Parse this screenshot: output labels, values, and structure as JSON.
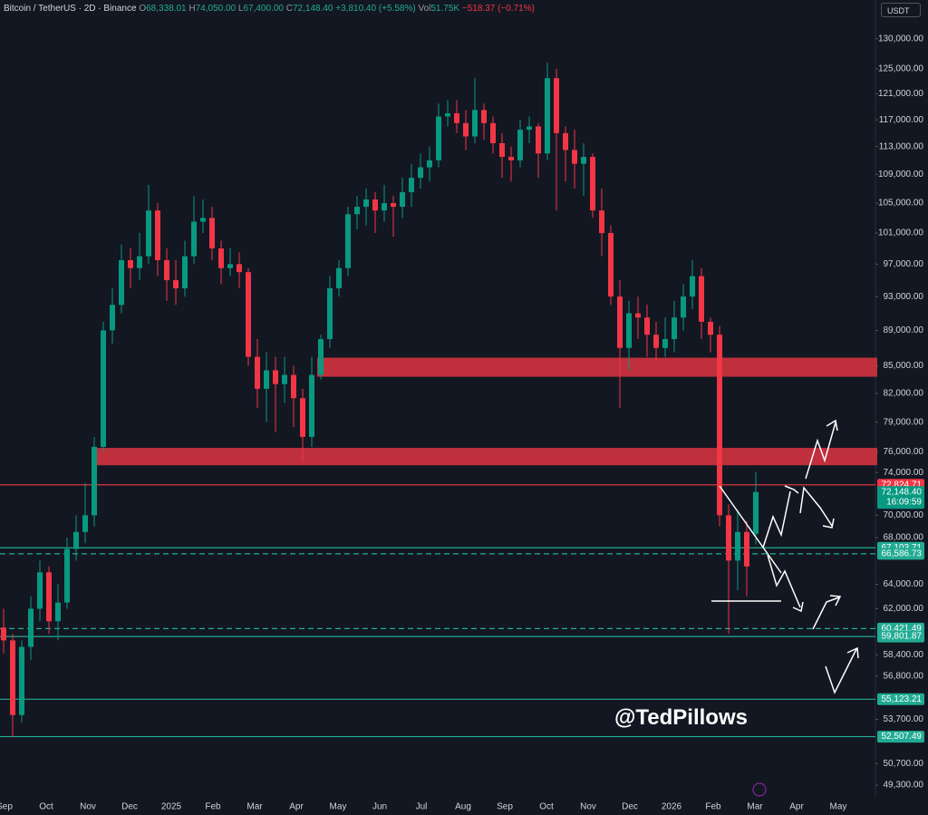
{
  "header": {
    "symbol": "Bitcoin / TetherUS · 2D · Binance",
    "fields": [
      {
        "key": "O",
        "value": "68,338.01"
      },
      {
        "key": "H",
        "value": "74,050.00"
      },
      {
        "key": "L",
        "value": "67,400.00"
      },
      {
        "key": "C",
        "value": "72,148.40"
      }
    ],
    "change": "+3,810.40 (+5.58%)",
    "volume_key": "Vol",
    "volume": "51.75K",
    "volume_change": "−518.37 (−0.71%)"
  },
  "currency": "USDT",
  "watermark": "@TedPillows",
  "chart_data": {
    "type": "candlestick",
    "log_scale": true,
    "up_color": "#089981",
    "down_color": "#f23645",
    "zone_color": "#d3323f",
    "ylim": [
      48500,
      136700
    ],
    "yticks": [
      {
        "value": 130000,
        "label": "130,000.00"
      },
      {
        "value": 125000,
        "label": "125,000.00"
      },
      {
        "value": 121000,
        "label": "121,000.00"
      },
      {
        "value": 117000,
        "label": "117,000.00"
      },
      {
        "value": 113000,
        "label": "113,000.00"
      },
      {
        "value": 109000,
        "label": "109,000.00"
      },
      {
        "value": 105000,
        "label": "105,000.00"
      },
      {
        "value": 101000,
        "label": "101,000.00"
      },
      {
        "value": 97000,
        "label": "97,000.00"
      },
      {
        "value": 93000,
        "label": "93,000.00"
      },
      {
        "value": 89000,
        "label": "89,000.00"
      },
      {
        "value": 85000,
        "label": "85,000.00"
      },
      {
        "value": 82000,
        "label": "82,000.00"
      },
      {
        "value": 79000,
        "label": "79,000.00"
      },
      {
        "value": 76000,
        "label": "76,000.00"
      },
      {
        "value": 74000,
        "label": "74,000.00"
      },
      {
        "value": 70000,
        "label": "70,000.00"
      },
      {
        "value": 68000,
        "label": "68,000.00"
      },
      {
        "value": 64000,
        "label": "64,000.00"
      },
      {
        "value": 62000,
        "label": "62,000.00"
      },
      {
        "value": 58400,
        "label": "58,400.00"
      },
      {
        "value": 56800,
        "label": "56,800.00"
      },
      {
        "value": 53700,
        "label": "53,700.00"
      },
      {
        "value": 50700,
        "label": "50,700.00"
      },
      {
        "value": 49300,
        "label": "49,300.00"
      }
    ],
    "x_labels": [
      "Sep",
      "Oct",
      "Nov",
      "Dec",
      "2025",
      "Feb",
      "Mar",
      "Apr",
      "May",
      "Jun",
      "Jul",
      "Aug",
      "Sep",
      "Oct",
      "Nov",
      "Dec",
      "2026",
      "Feb",
      "Mar",
      "Apr",
      "May"
    ],
    "candles": [
      [
        60500,
        62000,
        58500,
        59500
      ],
      [
        59500,
        60000,
        52500,
        54000
      ],
      [
        54000,
        59500,
        53500,
        59000
      ],
      [
        59000,
        63000,
        58000,
        62000
      ],
      [
        62000,
        66000,
        61000,
        65000
      ],
      [
        65000,
        65500,
        60000,
        61000
      ],
      [
        61000,
        64000,
        59500,
        62500
      ],
      [
        62500,
        68000,
        62000,
        67000
      ],
      [
        67000,
        70000,
        66000,
        68500
      ],
      [
        68500,
        73000,
        67500,
        70000
      ],
      [
        70000,
        77500,
        69000,
        76500
      ],
      [
        76500,
        90000,
        76000,
        89000
      ],
      [
        89000,
        94000,
        87500,
        92000
      ],
      [
        92000,
        99500,
        91000,
        97500
      ],
      [
        97500,
        99000,
        94000,
        96500
      ],
      [
        96500,
        101000,
        95000,
        98000
      ],
      [
        98000,
        107500,
        97000,
        104000
      ],
      [
        104000,
        105000,
        95500,
        97500
      ],
      [
        97500,
        99000,
        92500,
        95000
      ],
      [
        95000,
        97500,
        92000,
        94000
      ],
      [
        94000,
        100000,
        93000,
        98000
      ],
      [
        98000,
        106000,
        97000,
        102500
      ],
      [
        102500,
        105500,
        101000,
        103000
      ],
      [
        103000,
        104500,
        97500,
        99000
      ],
      [
        99000,
        100000,
        94500,
        96500
      ],
      [
        96500,
        99000,
        95500,
        97000
      ],
      [
        97000,
        98500,
        94000,
        96000
      ],
      [
        96000,
        96500,
        85000,
        86000
      ],
      [
        86000,
        88000,
        80500,
        82500
      ],
      [
        82500,
        86500,
        79000,
        84500
      ],
      [
        84500,
        86000,
        78000,
        83000
      ],
      [
        83000,
        86000,
        81000,
        84000
      ],
      [
        84000,
        85000,
        78500,
        81500
      ],
      [
        81500,
        82500,
        75000,
        77500
      ],
      [
        77500,
        86000,
        76500,
        84000
      ],
      [
        84000,
        88500,
        83500,
        88000
      ],
      [
        88000,
        95500,
        87000,
        94000
      ],
      [
        94000,
        97500,
        93000,
        96500
      ],
      [
        96500,
        104500,
        95500,
        103500
      ],
      [
        103500,
        106000,
        101500,
        104500
      ],
      [
        104500,
        107000,
        102000,
        105500
      ],
      [
        105500,
        106500,
        101000,
        104000
      ],
      [
        104000,
        107500,
        102500,
        105000
      ],
      [
        105000,
        106000,
        100500,
        104500
      ],
      [
        104500,
        108500,
        103000,
        106500
      ],
      [
        106500,
        110500,
        104500,
        108500
      ],
      [
        108500,
        112000,
        107000,
        110000
      ],
      [
        110000,
        113000,
        108000,
        111000
      ],
      [
        111000,
        119500,
        110000,
        117500
      ],
      [
        117500,
        120000,
        116000,
        118000
      ],
      [
        118000,
        120000,
        115000,
        116500
      ],
      [
        116500,
        118500,
        112500,
        114500
      ],
      [
        114500,
        123500,
        113500,
        118500
      ],
      [
        118500,
        119500,
        114000,
        116500
      ],
      [
        116500,
        117500,
        112000,
        113500
      ],
      [
        113500,
        115000,
        108500,
        111500
      ],
      [
        111500,
        113000,
        108000,
        111000
      ],
      [
        111000,
        117000,
        110000,
        115500
      ],
      [
        115500,
        117500,
        113500,
        116000
      ],
      [
        116000,
        116500,
        108500,
        112000
      ],
      [
        112000,
        126000,
        111000,
        123500
      ],
      [
        123500,
        125000,
        104000,
        115000
      ],
      [
        115000,
        116000,
        108000,
        112500
      ],
      [
        112500,
        115500,
        107000,
        110500
      ],
      [
        110500,
        113500,
        106000,
        111500
      ],
      [
        111500,
        112000,
        103000,
        104000
      ],
      [
        104000,
        107000,
        98000,
        101000
      ],
      [
        101000,
        102000,
        92000,
        93000
      ],
      [
        93000,
        95000,
        80500,
        87000
      ],
      [
        87000,
        92500,
        84500,
        91000
      ],
      [
        91000,
        93000,
        88000,
        90500
      ],
      [
        90500,
        92000,
        86000,
        88500
      ],
      [
        88500,
        90000,
        85500,
        87000
      ],
      [
        87000,
        90500,
        86000,
        88000
      ],
      [
        88000,
        92500,
        86500,
        90500
      ],
      [
        90500,
        94500,
        89000,
        93000
      ],
      [
        93000,
        97500,
        91500,
        95500
      ],
      [
        95500,
        96500,
        88000,
        90000
      ],
      [
        90000,
        90500,
        86500,
        88500
      ],
      [
        88500,
        89500,
        69000,
        70000
      ],
      [
        70000,
        71000,
        60000,
        66000
      ],
      [
        66000,
        70500,
        63500,
        68500
      ],
      [
        68500,
        69500,
        63000,
        65500
      ],
      [
        68338.01,
        74050,
        67400,
        72148.4
      ]
    ],
    "zones": [
      [
        83800,
        85900
      ],
      [
        74700,
        76400
      ]
    ],
    "levels": [
      {
        "value": 72824.71,
        "label": "72,824.71",
        "color": "#f23645",
        "style": "solid"
      },
      {
        "value": 72148.4,
        "label": "72,148.40",
        "color": "#089981",
        "style": "none",
        "countdown": "16:09:59"
      },
      {
        "value": 67103.71,
        "label": "67,103.71",
        "color": "#22ab94",
        "style": "solid"
      },
      {
        "value": 66586.73,
        "label": "66,586.73",
        "color": "#22ab94",
        "style": "dashed"
      },
      {
        "value": 60421.49,
        "label": "60,421.49",
        "color": "#22ab94",
        "style": "dashed"
      },
      {
        "value": 59801.87,
        "label": "59,801.87",
        "color": "#22ab94",
        "style": "solid"
      },
      {
        "value": 55123.21,
        "label": "55,123.21",
        "color": "#22ab94",
        "style": "solid"
      },
      {
        "value": 52507.49,
        "label": "52,507.49",
        "color": "#22ab94",
        "style": "solid"
      }
    ]
  }
}
